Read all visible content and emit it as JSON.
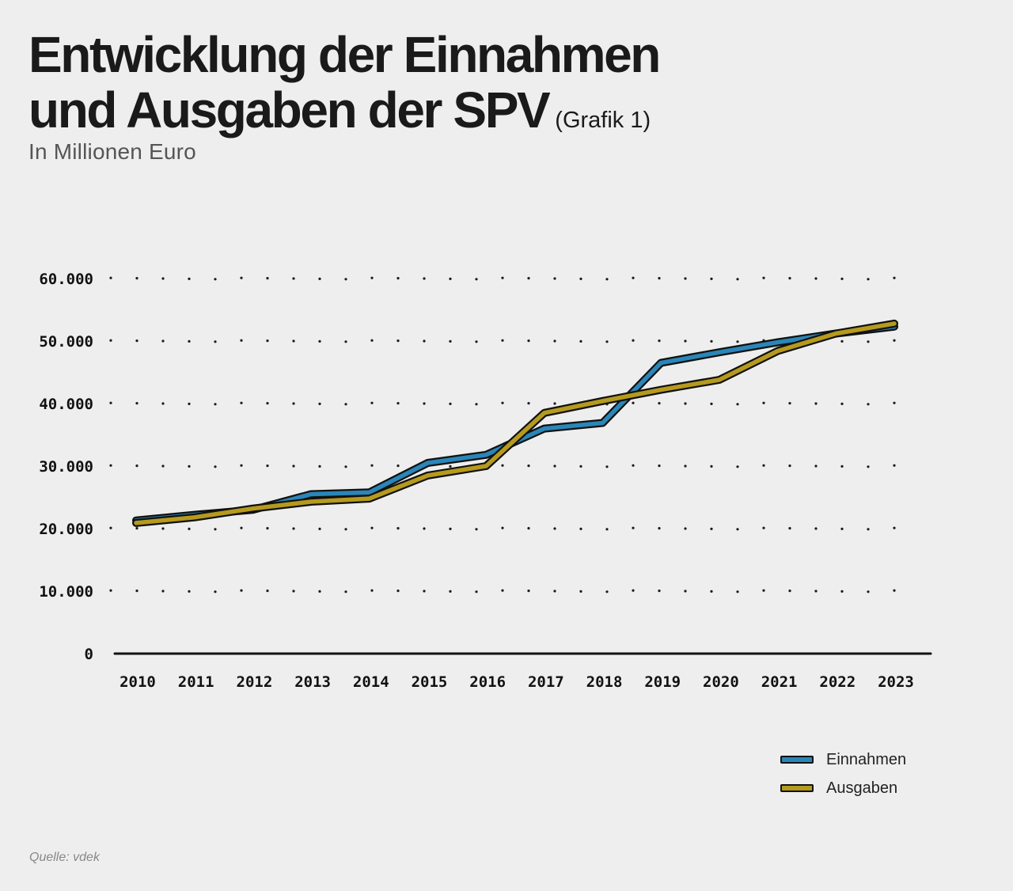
{
  "title": {
    "line1": "Entwicklung der Einnahmen",
    "line2": "und Ausgaben der SPV",
    "suffix": "(Grafik 1)"
  },
  "subtitle": "In Millionen Euro",
  "source": "Quelle: vdek",
  "colors": {
    "einnahmen": "#2a86b8",
    "ausgaben": "#b59a1e",
    "background": "#eeeeee",
    "ink": "#111111"
  },
  "chart_data": {
    "type": "line",
    "title": "Entwicklung der Einnahmen und Ausgaben der SPV",
    "xlabel": "",
    "ylabel": "In Millionen Euro",
    "categories": [
      "2010",
      "2011",
      "2012",
      "2013",
      "2014",
      "2015",
      "2016",
      "2017",
      "2018",
      "2019",
      "2020",
      "2021",
      "2022",
      "2023"
    ],
    "ylim": [
      0,
      60000
    ],
    "yticks": [
      0,
      10000,
      20000,
      30000,
      40000,
      50000,
      60000
    ],
    "ytick_labels": [
      "0",
      "10.000",
      "20.000",
      "30.000",
      "40.000",
      "50.000",
      "60.000"
    ],
    "grid": "dotted",
    "legend_position": "bottom-right",
    "series": [
      {
        "name": "Einnahmen",
        "color": "#2a86b8",
        "values": [
          21300,
          22200,
          23000,
          25500,
          25800,
          30500,
          31800,
          36000,
          36900,
          46500,
          48200,
          49800,
          51200,
          52300
        ]
      },
      {
        "name": "Ausgaben",
        "color": "#b59a1e",
        "values": [
          20900,
          21800,
          23200,
          24300,
          24800,
          28500,
          30000,
          38500,
          40400,
          42200,
          43800,
          48400,
          51200,
          52800
        ]
      }
    ]
  }
}
